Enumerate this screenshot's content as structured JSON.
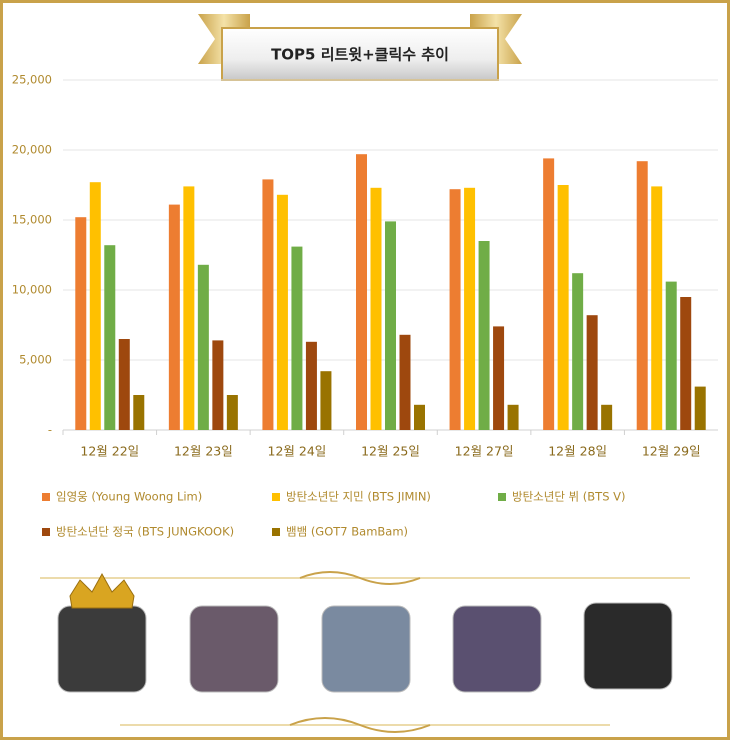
{
  "chart_data": {
    "type": "bar",
    "title": "TOP5 리트윗+클릭수 추이",
    "categories": [
      "12월 22일",
      "12월 23일",
      "12월 24일",
      "12월 25일",
      "12월 27일",
      "12월 28일",
      "12월 29일"
    ],
    "series": [
      {
        "name": "임영웅 (Young Woong Lim)",
        "color": "#ed7d31",
        "values": [
          15200,
          16100,
          17900,
          19700,
          17200,
          19400,
          19200
        ]
      },
      {
        "name": "방탄소년단 지민 (BTS JIMIN)",
        "color": "#ffc000",
        "values": [
          17700,
          17400,
          16800,
          17300,
          17300,
          17500,
          17400
        ]
      },
      {
        "name": "방탄소년단 뷔 (BTS V)",
        "color": "#70ad47",
        "values": [
          13200,
          11800,
          13100,
          14900,
          13500,
          11200,
          10600
        ]
      },
      {
        "name": "방탄소년단 정국 (BTS JUNGKOOK)",
        "color": "#9e480e",
        "values": [
          6500,
          6400,
          6300,
          6800,
          7400,
          8200,
          9500
        ]
      },
      {
        "name": "뱀뱀 (GOT7 BamBam)",
        "color": "#997300",
        "values": [
          2500,
          2500,
          4200,
          1800,
          1800,
          1800,
          3100
        ]
      }
    ],
    "ylim": [
      0,
      25000
    ],
    "yticks": [
      {
        "value": 0,
        "label": "-"
      },
      {
        "value": 5000,
        "label": "5,000"
      },
      {
        "value": 10000,
        "label": "10,000"
      },
      {
        "value": 15000,
        "label": "15,000"
      },
      {
        "value": 20000,
        "label": "20,000"
      },
      {
        "value": 25000,
        "label": "25,000"
      }
    ],
    "grid": true
  }
}
